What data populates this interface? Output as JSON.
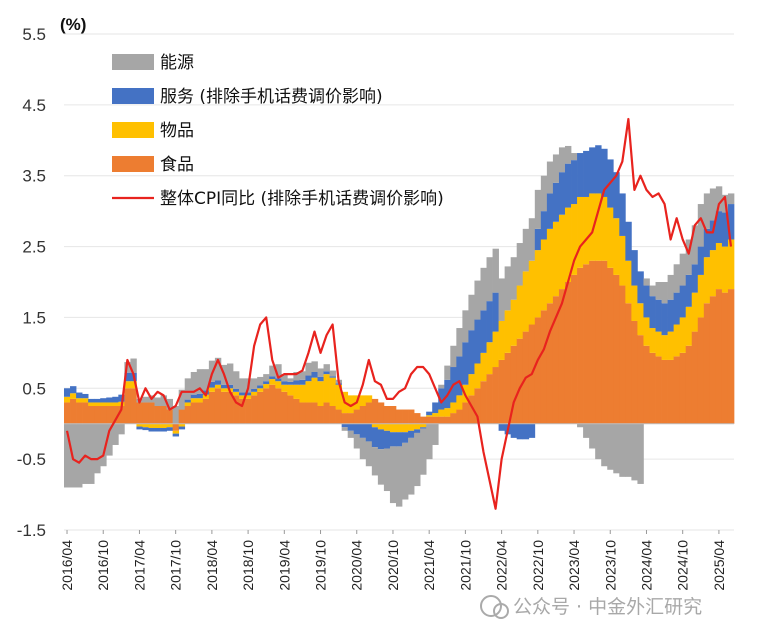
{
  "chart_data": {
    "type": "bar",
    "stacked": true,
    "unit_label": "(%)",
    "ylim": [
      -1.5,
      5.5
    ],
    "yticks": [
      5.5,
      4.5,
      3.5,
      2.5,
      1.5,
      0.5,
      -0.5,
      -1.5
    ],
    "xtick_labels": [
      "2016/04",
      "2016/10",
      "2017/04",
      "2017/10",
      "2018/04",
      "2018/10",
      "2019/04",
      "2019/10",
      "2020/04",
      "2020/10",
      "2021/04",
      "2021/10",
      "2022/04",
      "2022/10",
      "2023/04",
      "2023/10",
      "2024/04",
      "2024/10",
      "2025/04"
    ],
    "start_month": "2016/04",
    "months_count": 111,
    "legend_position": "top-left",
    "colors": {
      "energy": "#a6a6a6",
      "services": "#4472c4",
      "goods": "#ffc000",
      "food": "#ed7d31",
      "line": "#e8231e"
    },
    "series": [
      {
        "key": "energy",
        "name": "能源",
        "values": [
          -0.9,
          -0.9,
          -0.9,
          -0.85,
          -0.85,
          -0.7,
          -0.6,
          -0.45,
          -0.3,
          -0.15,
          0.15,
          0.2,
          0.05,
          0.08,
          0.1,
          0.12,
          0.15,
          0.15,
          0.25,
          0.28,
          0.3,
          0.32,
          0.35,
          0.3,
          0.3,
          0.32,
          0.28,
          0.3,
          0.25,
          0.2,
          0.2,
          0.15,
          0.12,
          0.1,
          0.15,
          0.2,
          0.1,
          0.05,
          0.12,
          0.12,
          0.18,
          0.15,
          0.12,
          0.1,
          0.08,
          0.05,
          -0.05,
          -0.1,
          -0.2,
          -0.3,
          -0.35,
          -0.4,
          -0.5,
          -0.6,
          -0.8,
          -0.85,
          -0.8,
          -0.8,
          -0.75,
          -0.65,
          -0.5,
          -0.3,
          0.05,
          0.2,
          0.3,
          0.4,
          0.45,
          0.5,
          0.55,
          0.6,
          0.62,
          0.62,
          0.6,
          0.62,
          0.6,
          0.6,
          0.6,
          0.6,
          0.55,
          0.5,
          0.45,
          0.4,
          0.35,
          0.25,
          0.1,
          -0.05,
          -0.2,
          -0.35,
          -0.5,
          -0.6,
          -0.65,
          -0.7,
          -0.75,
          -0.75,
          -0.8,
          -0.85,
          0.1,
          0.15,
          0.25,
          0.3,
          0.35,
          0.4,
          0.45,
          0.5,
          0.55,
          0.6,
          0.5,
          0.45,
          0.35,
          0.25,
          0.15
        ]
      },
      {
        "key": "services",
        "name": "服务 (排除手机话费调价影响)",
        "values": [
          0.12,
          0.1,
          0.08,
          0.06,
          0.05,
          0.05,
          0.06,
          0.07,
          0.08,
          0.1,
          0.12,
          0.12,
          -0.04,
          -0.04,
          -0.05,
          -0.05,
          -0.05,
          -0.05,
          -0.04,
          -0.04,
          0.04,
          0.05,
          0.06,
          0.06,
          0.08,
          0.06,
          0.05,
          0.05,
          0.04,
          0.04,
          0.04,
          0.04,
          0.04,
          0.04,
          0.04,
          0.04,
          0.05,
          0.04,
          0.06,
          0.07,
          0.08,
          0.08,
          0.06,
          0.04,
          0.02,
          0.02,
          -0.05,
          -0.1,
          -0.15,
          -0.2,
          -0.25,
          -0.28,
          -0.28,
          -0.25,
          -0.2,
          -0.2,
          -0.15,
          -0.1,
          -0.05,
          -0.02,
          0.05,
          0.15,
          0.3,
          0.4,
          0.5,
          0.55,
          0.6,
          0.62,
          0.62,
          0.6,
          0.58,
          0.55,
          -0.1,
          -0.15,
          -0.2,
          -0.22,
          -0.22,
          -0.2,
          0.3,
          0.4,
          0.5,
          0.55,
          0.6,
          0.62,
          0.62,
          0.62,
          0.65,
          0.65,
          0.68,
          0.68,
          0.68,
          0.65,
          0.6,
          0.55,
          0.5,
          0.45,
          0.45,
          0.45,
          0.45,
          0.45,
          0.45,
          0.45,
          0.45,
          0.45,
          0.4,
          0.4,
          0.4,
          0.42,
          0.45,
          0.48,
          0.5
        ]
      },
      {
        "key": "goods",
        "name": "物品",
        "values": [
          0.08,
          0.08,
          0.06,
          0.06,
          0.05,
          0.05,
          0.05,
          0.05,
          0.05,
          0.06,
          0.1,
          0.1,
          -0.04,
          -0.05,
          -0.06,
          -0.06,
          -0.06,
          -0.05,
          -0.04,
          -0.04,
          0.05,
          0.06,
          0.06,
          0.06,
          0.06,
          0.05,
          0.05,
          0.05,
          0.05,
          0.05,
          0.05,
          0.05,
          0.05,
          0.06,
          0.08,
          0.1,
          0.1,
          0.15,
          0.2,
          0.25,
          0.3,
          0.35,
          0.35,
          0.4,
          0.4,
          0.35,
          0.3,
          0.25,
          0.2,
          0.15,
          0.1,
          -0.05,
          -0.08,
          -0.1,
          -0.12,
          -0.12,
          -0.12,
          -0.1,
          -0.08,
          -0.05,
          0.02,
          0.05,
          0.1,
          0.12,
          0.15,
          0.2,
          0.25,
          0.3,
          0.35,
          0.4,
          0.45,
          0.5,
          0.55,
          0.6,
          0.65,
          0.75,
          0.85,
          0.9,
          0.95,
          1.0,
          1.05,
          1.05,
          1.05,
          1.05,
          1.0,
          1.0,
          0.95,
          0.95,
          0.95,
          0.9,
          0.85,
          0.8,
          0.7,
          0.6,
          0.5,
          0.45,
          0.4,
          0.35,
          0.35,
          0.35,
          0.4,
          0.45,
          0.5,
          0.55,
          0.55,
          0.6,
          0.65,
          0.65,
          0.65,
          0.65,
          0.7
        ]
      },
      {
        "key": "food",
        "name": "食品",
        "values": [
          0.3,
          0.35,
          0.3,
          0.3,
          0.25,
          0.25,
          0.25,
          0.25,
          0.25,
          0.25,
          0.5,
          0.5,
          0.3,
          0.3,
          0.3,
          0.25,
          0.25,
          0.2,
          -0.1,
          0.2,
          0.25,
          0.3,
          0.3,
          0.35,
          0.45,
          0.5,
          0.45,
          0.45,
          0.4,
          0.35,
          0.35,
          0.4,
          0.45,
          0.5,
          0.55,
          0.5,
          0.45,
          0.4,
          0.35,
          0.3,
          0.3,
          0.3,
          0.25,
          0.3,
          0.25,
          0.2,
          0.15,
          0.15,
          0.2,
          0.25,
          0.3,
          0.35,
          0.3,
          0.25,
          0.25,
          0.2,
          0.2,
          0.2,
          0.15,
          0.1,
          0.1,
          0.1,
          0.1,
          0.1,
          0.15,
          0.2,
          0.3,
          0.4,
          0.5,
          0.6,
          0.7,
          0.8,
          0.9,
          1.0,
          1.1,
          1.2,
          1.3,
          1.4,
          1.5,
          1.6,
          1.7,
          1.8,
          1.9,
          2.0,
          2.1,
          2.2,
          2.25,
          2.3,
          2.3,
          2.3,
          2.2,
          2.1,
          1.95,
          1.7,
          1.45,
          1.25,
          1.1,
          1.0,
          0.95,
          0.9,
          0.9,
          0.95,
          1.0,
          1.1,
          1.3,
          1.5,
          1.7,
          1.8,
          1.9,
          1.85,
          1.9
        ]
      }
    ],
    "line": {
      "name": "整体CPI同比 (排除手机话费调价影响)",
      "values": [
        -0.1,
        -0.5,
        -0.55,
        -0.45,
        -0.5,
        -0.5,
        -0.45,
        -0.1,
        0.05,
        0.2,
        0.9,
        0.7,
        0.3,
        0.5,
        0.35,
        0.45,
        0.4,
        0.2,
        0.25,
        0.45,
        0.45,
        0.45,
        0.5,
        0.4,
        0.7,
        0.9,
        0.7,
        0.45,
        0.3,
        0.25,
        0.5,
        1.1,
        1.4,
        1.5,
        0.9,
        0.65,
        0.7,
        0.7,
        0.7,
        0.75,
        1.0,
        1.3,
        1.0,
        1.25,
        1.4,
        0.6,
        0.3,
        0.25,
        0.3,
        0.55,
        0.9,
        0.6,
        0.55,
        0.35,
        0.35,
        0.45,
        0.5,
        0.7,
        0.8,
        0.8,
        0.7,
        0.5,
        0.3,
        0.4,
        0.55,
        0.6,
        0.4,
        0.25,
        0.1,
        -0.4,
        -0.8,
        -1.2,
        -0.5,
        -0.1,
        0.3,
        0.5,
        0.65,
        0.7,
        0.9,
        1.05,
        1.3,
        1.5,
        1.7,
        2.0,
        2.3,
        2.5,
        2.6,
        2.7,
        3.0,
        3.3,
        3.4,
        3.5,
        3.7,
        4.3,
        3.3,
        3.5,
        3.3,
        3.2,
        3.25,
        3.1,
        2.6,
        2.9,
        2.6,
        2.4,
        2.8,
        2.9,
        2.7,
        2.7,
        3.1,
        3.2,
        2.5
      ]
    },
    "legend": [
      {
        "key": "energy",
        "label": "能源"
      },
      {
        "key": "services",
        "label": "服务 (排除手机话费调价影响)"
      },
      {
        "key": "goods",
        "label": "物品"
      },
      {
        "key": "food",
        "label": "食品"
      },
      {
        "key": "line",
        "label": "整体CPI同比 (排除手机话费调价影响)"
      }
    ]
  },
  "watermark": {
    "text": "公众号 · 中金外汇研究"
  }
}
